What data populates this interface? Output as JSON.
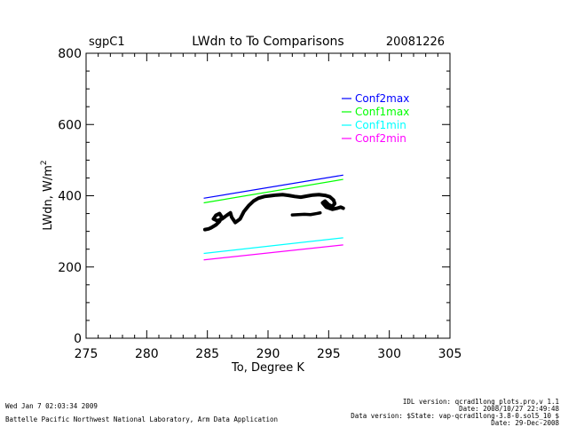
{
  "header": {
    "site": "sgpC1",
    "title": "LWdn to To Comparisons",
    "date": "20081226"
  },
  "chart_data": {
    "type": "line",
    "xlabel": "To, Degree K",
    "ylabel": "LWdn, W/m",
    "ylabel_superscript": "2",
    "xlim": [
      275,
      305
    ],
    "ylim": [
      0,
      800
    ],
    "xticks": [
      275,
      280,
      285,
      290,
      295,
      300,
      305
    ],
    "yticks": [
      0,
      200,
      400,
      600,
      800
    ],
    "xtick_labels": [
      "275",
      "280",
      "285",
      "290",
      "295",
      "300",
      "305"
    ],
    "ytick_labels": [
      "0",
      "200",
      "400",
      "600",
      "800"
    ],
    "legend_position": "top-right",
    "series": [
      {
        "name": "Conf2max",
        "color": "#0000ff",
        "x": [
          284.7,
          296.2
        ],
        "y": [
          393,
          458
        ]
      },
      {
        "name": "Conf1max",
        "color": "#00ff00",
        "x": [
          284.7,
          296.2
        ],
        "y": [
          380,
          446
        ]
      },
      {
        "name": "Conf1min",
        "color": "#00ffff",
        "x": [
          284.7,
          296.2
        ],
        "y": [
          238,
          282
        ]
      },
      {
        "name": "Conf2min",
        "color": "#ff00ff",
        "x": [
          284.7,
          296.2
        ],
        "y": [
          220,
          262
        ]
      }
    ],
    "observed": {
      "color": "#000000",
      "x": [
        284.8,
        285.1,
        285.3,
        285.7,
        286.0,
        286.2,
        286.0,
        285.7,
        285.5,
        285.8,
        286.2,
        286.6,
        286.9,
        287.0,
        287.3,
        287.7,
        288.0,
        288.4,
        288.8,
        289.2,
        289.7,
        290.2,
        290.7,
        291.2,
        291.7,
        292.2,
        292.7,
        293.2,
        293.7,
        294.2,
        294.7,
        295.1,
        295.4,
        295.5,
        295.3,
        295.0,
        294.7,
        294.5,
        294.8,
        295.3,
        295.7,
        296.0,
        296.2
      ],
      "y": [
        305,
        307,
        310,
        318,
        328,
        340,
        350,
        345,
        335,
        330,
        335,
        345,
        352,
        340,
        325,
        335,
        355,
        372,
        385,
        393,
        398,
        400,
        402,
        403,
        401,
        398,
        396,
        399,
        402,
        403,
        401,
        397,
        388,
        378,
        370,
        375,
        385,
        380,
        368,
        362,
        365,
        368,
        365
      ]
    },
    "observed_lower": {
      "x": [
        292.0,
        292.5,
        293.0,
        293.5,
        294.0,
        294.3
      ],
      "y": [
        346,
        347,
        348,
        347,
        350,
        352
      ]
    }
  },
  "footer": {
    "run_date": "Wed Jan  7 02:03:34 2009",
    "lab": "Battelle Pacific Northwest National Laboratory, Arm Data Application",
    "idl_version": "IDL version: qcrad1long_plots.pro,v 1.1",
    "idl_date": "Date: 2008/10/27 22:49:48",
    "data_version": "Data version: $State: vap-qcrad1long-3.8-0.sol5_10 $",
    "data_date": "Date: 29-Dec-2008"
  }
}
